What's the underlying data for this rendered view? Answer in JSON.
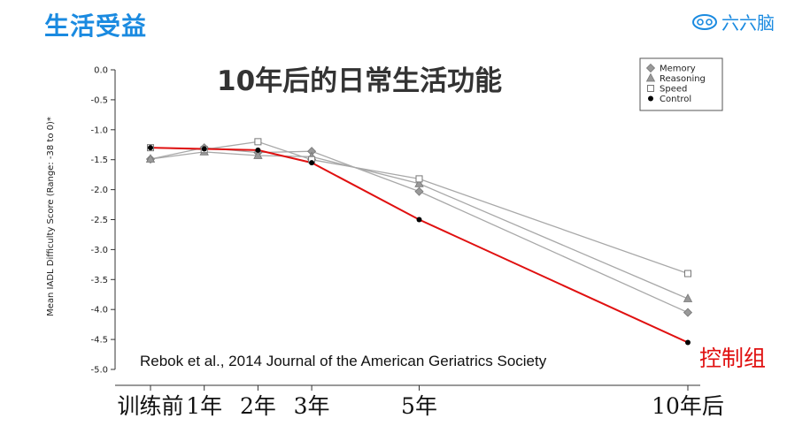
{
  "header": {
    "title": "生活受益"
  },
  "logo": {
    "text": "六六脑",
    "icon": "brain-cloud-icon",
    "color": "#1a8ae0"
  },
  "colors": {
    "control": "#e01010",
    "training": "#a8a8a8",
    "axis": "#333333"
  },
  "chart_data": {
    "type": "line",
    "title": "10年后的日常生活功能",
    "ylabel": "Mean IADL Difficulty Score (Range: -38 to 0)*",
    "xlabel": "",
    "ylim": [
      -5.0,
      0.0
    ],
    "yticks": [
      "0.0",
      "-0.5",
      "-1.0",
      "-1.5",
      "-2.0",
      "-2.5",
      "-3.0",
      "-3.5",
      "-4.0",
      "-4.5",
      "-5.0"
    ],
    "categories": [
      "训练前",
      "1年",
      "2年",
      "3年",
      "5年",
      "10年后"
    ],
    "x_years": [
      0,
      1,
      2,
      3,
      5,
      10
    ],
    "grid": false,
    "legend_position": "top-right",
    "series": [
      {
        "name": "Memory",
        "marker": "diamond",
        "values": [
          -1.49,
          -1.3,
          -1.38,
          -1.36,
          -2.03,
          -4.05
        ]
      },
      {
        "name": "Reasoning",
        "marker": "triangle",
        "values": [
          -1.49,
          -1.37,
          -1.43,
          -1.45,
          -1.9,
          -3.82
        ]
      },
      {
        "name": "Speed",
        "marker": "square",
        "values": [
          -1.3,
          -1.33,
          -1.2,
          -1.5,
          -1.82,
          -3.4
        ]
      },
      {
        "name": "Control",
        "marker": "circle",
        "values": [
          -1.3,
          -1.32,
          -1.34,
          -1.55,
          -2.5,
          -4.55
        ]
      }
    ],
    "citation": "Rebok et al., 2014 Journal of the American Geriatrics Society",
    "annotation": "控制组"
  }
}
